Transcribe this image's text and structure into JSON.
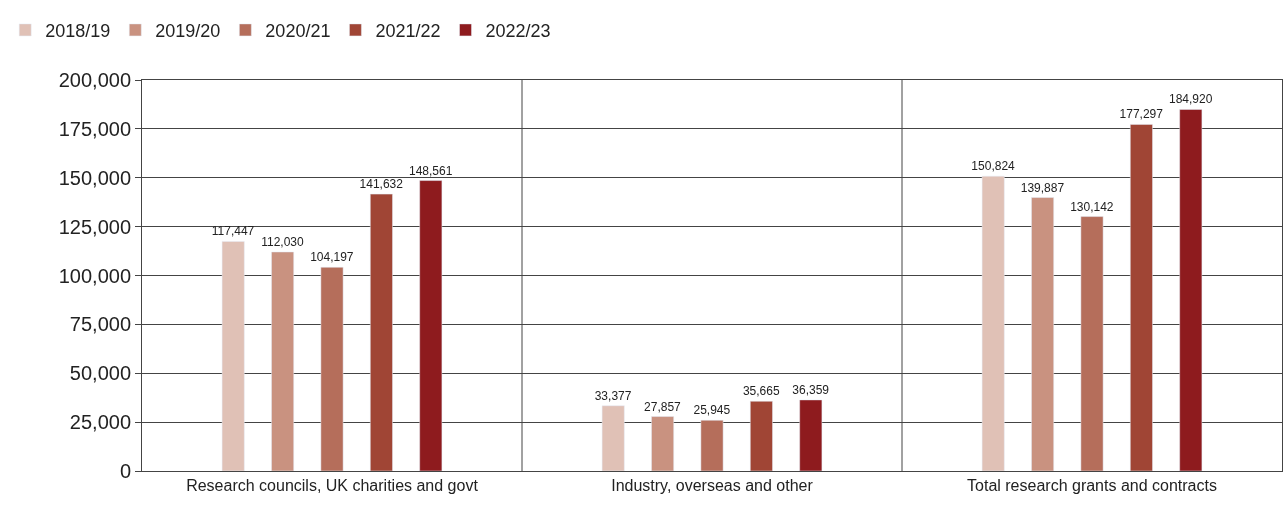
{
  "chart_data": {
    "type": "bar",
    "categories": [
      "Research councils, UK charities and govt",
      "Industry, overseas and other",
      "Total research grants and contracts"
    ],
    "series": [
      {
        "name": "2018/19",
        "color": "#e0c1b6",
        "values": [
          117447,
          33377,
          150824
        ],
        "value_labels": [
          "117,447",
          "33,377",
          "150,824"
        ]
      },
      {
        "name": "2019/20",
        "color": "#c99280",
        "values": [
          112030,
          27857,
          139887
        ],
        "value_labels": [
          "112,030",
          "27,857",
          "139,887"
        ]
      },
      {
        "name": "2020/21",
        "color": "#b56e5b",
        "values": [
          104197,
          25945,
          130142
        ],
        "value_labels": [
          "104,197",
          "25,945",
          "130,142"
        ]
      },
      {
        "name": "2021/22",
        "color": "#a04535",
        "values": [
          141632,
          35665,
          177297
        ],
        "value_labels": [
          "141,632",
          "35,665",
          "177,297"
        ]
      },
      {
        "name": "2022/23",
        "color": "#8e1b1e",
        "values": [
          148561,
          36359,
          184920
        ],
        "value_labels": [
          "148,561",
          "36,359",
          "184,920"
        ]
      }
    ],
    "ylim": [
      0,
      200000
    ],
    "yticks": [
      {
        "value": 0,
        "label": "0"
      },
      {
        "value": 25000,
        "label": "25,000"
      },
      {
        "value": 50000,
        "label": "50,000"
      },
      {
        "value": 75000,
        "label": "75,000"
      },
      {
        "value": 100000,
        "label": "100,000"
      },
      {
        "value": 125000,
        "label": "125,000"
      },
      {
        "value": 150000,
        "label": "150,000"
      },
      {
        "value": 175000,
        "label": "175,000"
      },
      {
        "value": 200000,
        "label": "200,000"
      }
    ],
    "grid": "y",
    "legend": "top left"
  }
}
